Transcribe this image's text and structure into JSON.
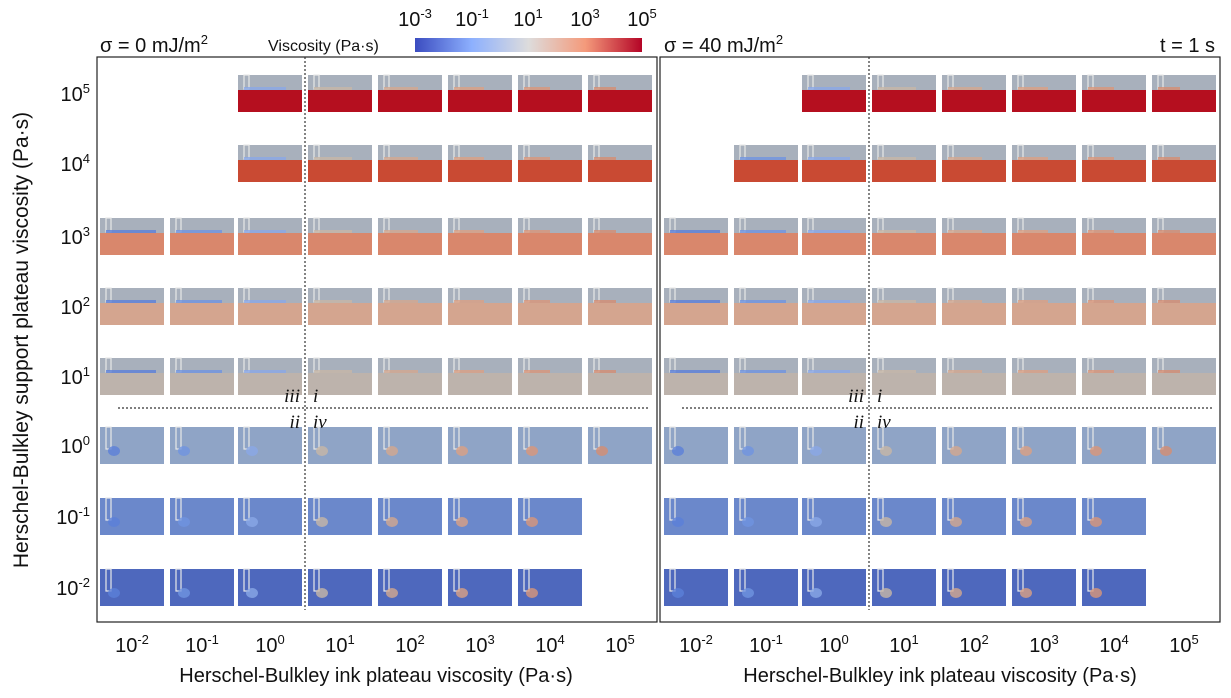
{
  "colorbar": {
    "label": "Viscosity (Pa·s)",
    "ticks": [
      {
        "base": "10",
        "exp": "-3"
      },
      {
        "base": "10",
        "exp": "-1"
      },
      {
        "base": "10",
        "exp": "1"
      },
      {
        "base": "10",
        "exp": "3"
      },
      {
        "base": "10",
        "exp": "5"
      }
    ]
  },
  "time_label": "t = 1 s",
  "y_axis": {
    "label": "Herschel-Bulkley support plateau viscosity (Pa·s)",
    "ticks": [
      {
        "base": "10",
        "exp": "5"
      },
      {
        "base": "10",
        "exp": "4"
      },
      {
        "base": "10",
        "exp": "3"
      },
      {
        "base": "10",
        "exp": "2"
      },
      {
        "base": "10",
        "exp": "1"
      },
      {
        "base": "10",
        "exp": "0"
      },
      {
        "base": "10",
        "exp": "-1"
      },
      {
        "base": "10",
        "exp": "-2"
      }
    ]
  },
  "panels": [
    {
      "title": {
        "text": "σ = 0 mJ/m",
        "sup": "2"
      },
      "x_label": "Herschel-Bulkley ink plateau viscosity (Pa·s)",
      "x_ticks": [
        {
          "base": "10",
          "exp": "-2"
        },
        {
          "base": "10",
          "exp": "-1"
        },
        {
          "base": "10",
          "exp": "0"
        },
        {
          "base": "10",
          "exp": "1"
        },
        {
          "base": "10",
          "exp": "2"
        },
        {
          "base": "10",
          "exp": "3"
        },
        {
          "base": "10",
          "exp": "4"
        },
        {
          "base": "10",
          "exp": "5"
        }
      ],
      "regimes": [
        "iii",
        "i",
        "ii",
        "iv"
      ]
    },
    {
      "title": {
        "text": "σ = 40 mJ/m",
        "sup": "2"
      },
      "x_label": "Herschel-Bulkley ink plateau viscosity (Pa·s)",
      "x_ticks": [
        {
          "base": "10",
          "exp": "-2"
        },
        {
          "base": "10",
          "exp": "-1"
        },
        {
          "base": "10",
          "exp": "0"
        },
        {
          "base": "10",
          "exp": "1"
        },
        {
          "base": "10",
          "exp": "2"
        },
        {
          "base": "10",
          "exp": "3"
        },
        {
          "base": "10",
          "exp": "4"
        },
        {
          "base": "10",
          "exp": "5"
        }
      ],
      "regimes": [
        "iii",
        "i",
        "ii",
        "iv"
      ]
    }
  ]
}
